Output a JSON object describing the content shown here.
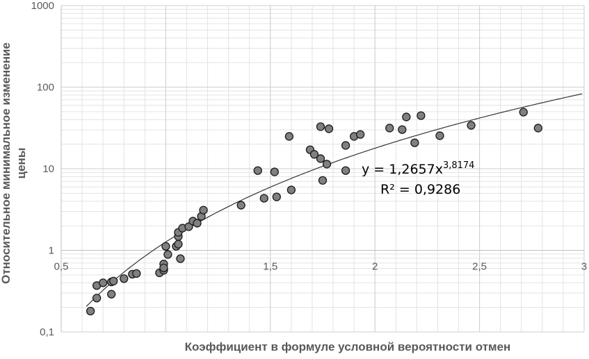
{
  "chart_data": {
    "type": "scatter",
    "log_y": true,
    "grid": true,
    "minor_grid": true,
    "x_label": "Коэффициент в формуле условной вероятности отмен",
    "y_label": [
      "Относительное минимальное изменение",
      "цены"
    ],
    "xlim": [
      0.5,
      3
    ],
    "ylim": [
      0.1,
      1000
    ],
    "xticks": [
      {
        "value": 0.5,
        "label": "0,5"
      },
      1,
      {
        "value": 1.5,
        "label": "1,5"
      },
      2,
      {
        "value": 2.5,
        "label": "2,5"
      },
      3
    ],
    "yticks": [
      {
        "value": 0.1,
        "label": "0,1"
      },
      1,
      10,
      100,
      1000
    ],
    "color": "#808080",
    "x": [
      0.64,
      0.67,
      0.67,
      0.7,
      0.74,
      0.74,
      0.75,
      0.8,
      0.84,
      0.86,
      0.97,
      0.99,
      0.99,
      0.99,
      1.0,
      1.01,
      1.05,
      1.06,
      1.06,
      1.06,
      1.07,
      1.08,
      1.11,
      1.13,
      1.15,
      1.17,
      1.18,
      1.36,
      1.44,
      1.47,
      1.52,
      1.53,
      1.59,
      1.6,
      1.69,
      1.71,
      1.74,
      1.74,
      1.75,
      1.77,
      1.78,
      1.86,
      1.86,
      1.9,
      1.93,
      2.07,
      2.13,
      2.15,
      2.19,
      2.22,
      2.31,
      2.46,
      2.71,
      2.78
    ],
    "values": [
      0.18,
      0.26,
      0.37,
      0.4,
      0.29,
      0.41,
      0.42,
      0.45,
      0.51,
      0.52,
      0.53,
      0.57,
      0.68,
      0.61,
      1.12,
      0.89,
      1.12,
      1.48,
      1.19,
      1.66,
      0.79,
      1.87,
      1.95,
      2.28,
      2.15,
      2.61,
      3.11,
      3.57,
      9.5,
      4.35,
      9.15,
      4.52,
      24.9,
      5.5,
      17.1,
      15.0,
      32.8,
      13.3,
      7.2,
      11.4,
      30.9,
      9.5,
      19.3,
      24.9,
      26.3,
      31.5,
      30.2,
      43.1,
      20.8,
      44.8,
      25.4,
      34.0,
      49.4,
      31.5
    ],
    "trendline": {
      "coefficient": 1.2657,
      "exponent": 3.8174,
      "equation_label": "y = 1,2657x",
      "exponent_label": "3,8174",
      "r2_label": "R² = 0,9286"
    }
  }
}
